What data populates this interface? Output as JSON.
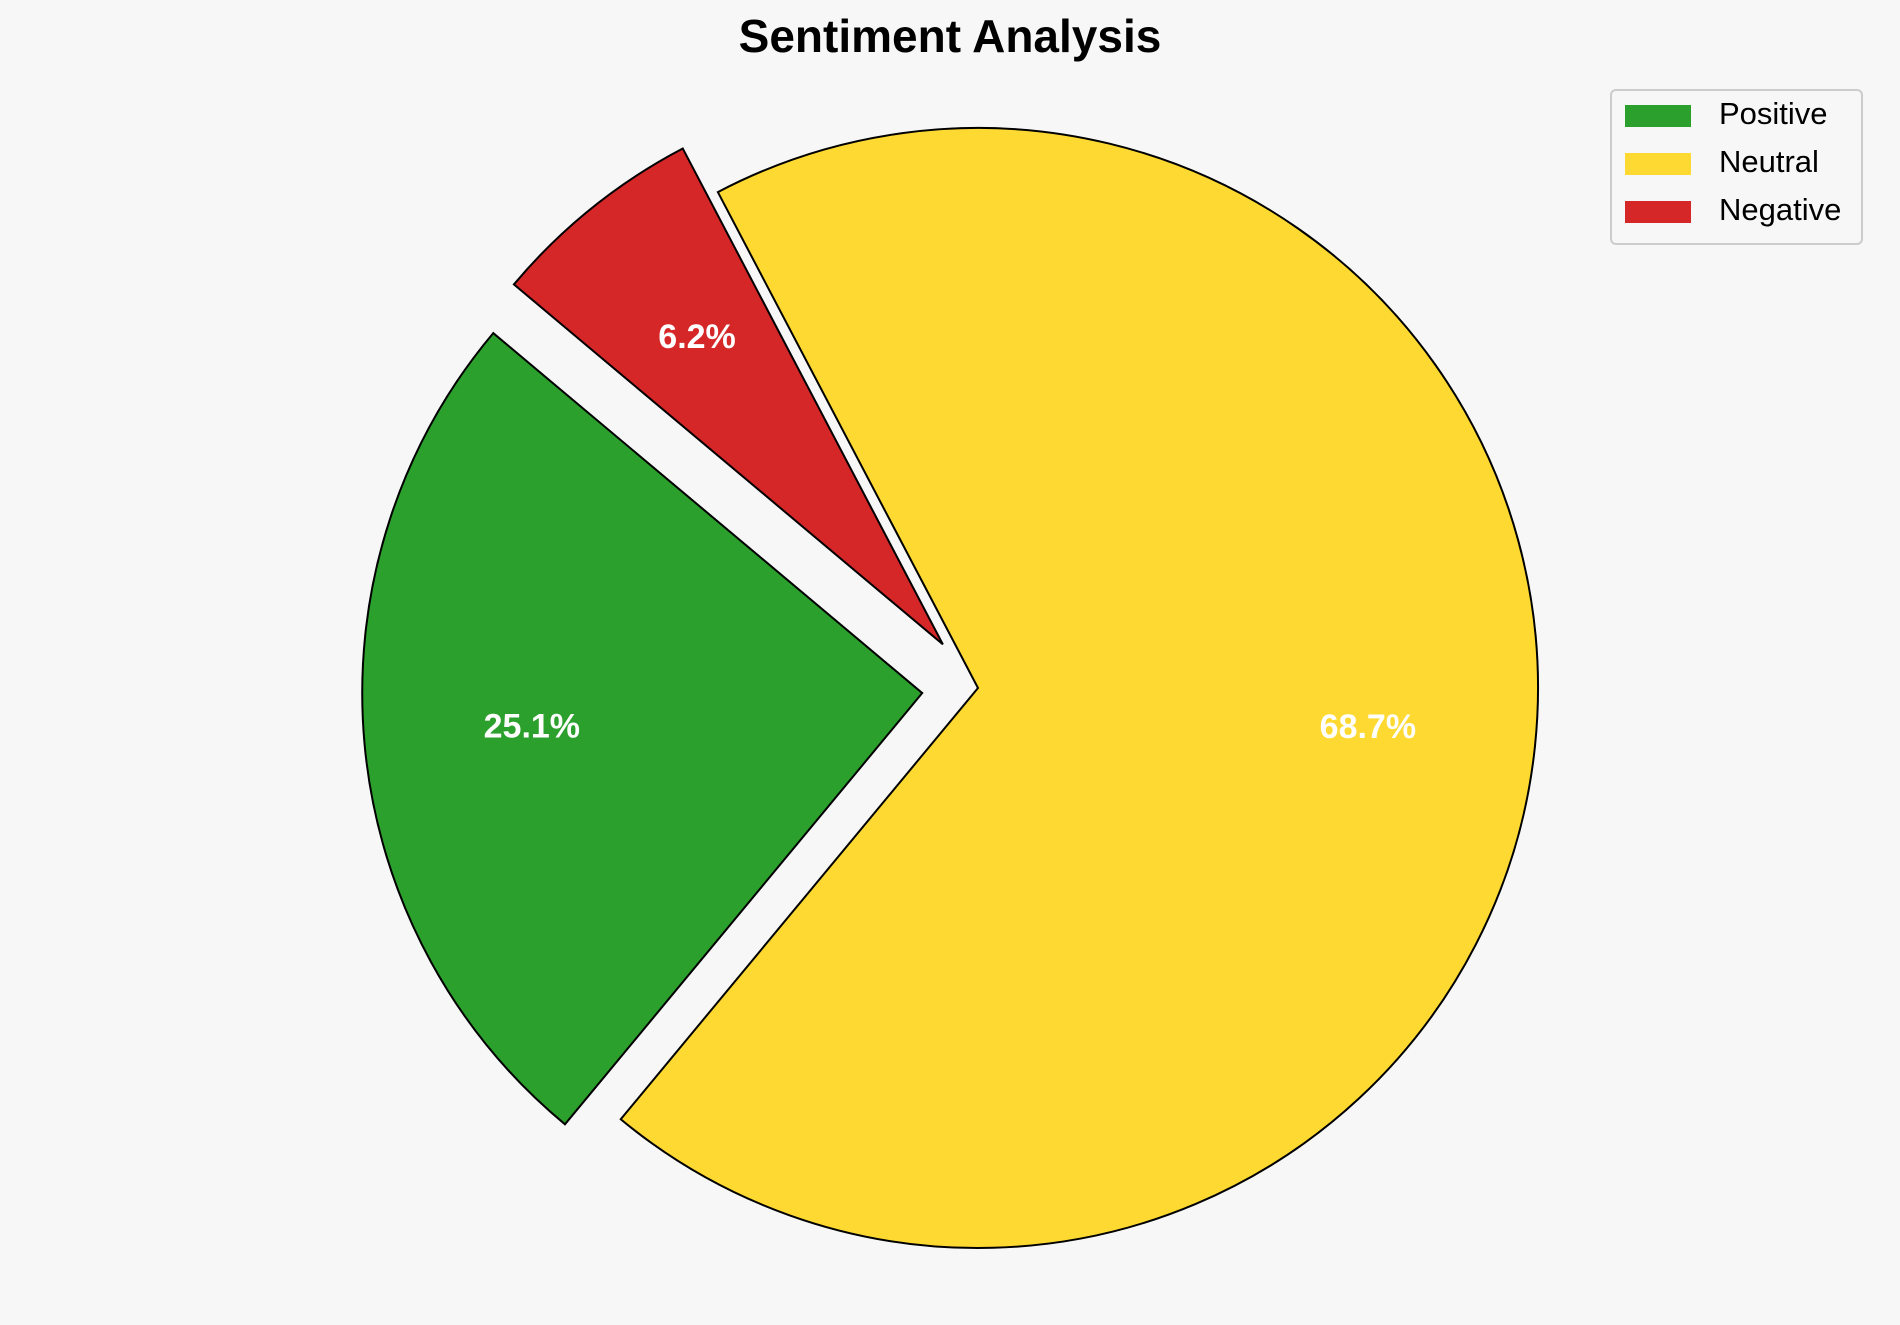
{
  "chart_data": {
    "type": "pie",
    "title": "Sentiment Analysis",
    "categories": [
      "Positive",
      "Neutral",
      "Negative"
    ],
    "values": [
      25.1,
      68.7,
      6.2
    ],
    "value_labels": [
      "25.1%",
      "68.7%",
      "6.2%"
    ],
    "colors": [
      "#2ca02c",
      "#fed931",
      "#d62728"
    ],
    "legend": "upper right"
  }
}
